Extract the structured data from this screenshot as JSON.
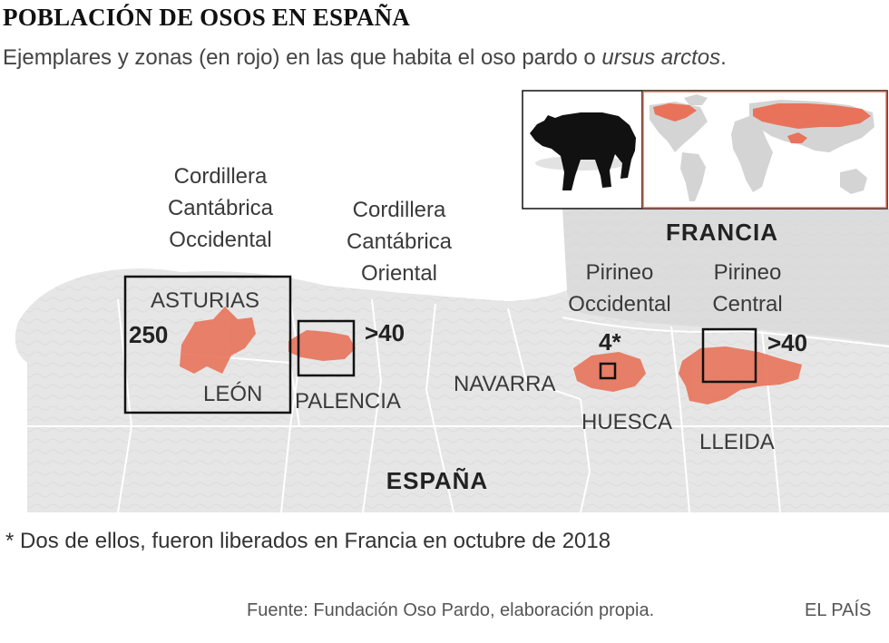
{
  "title": "POBLACIÓN DE OSOS EN ESPAÑA",
  "subtitle_prefix": "Ejemplares y zonas (en rojo) en las que habita el oso pardo o ",
  "subtitle_species": "ursus arctos",
  "subtitle_suffix": ".",
  "map": {
    "countries": {
      "france": "FRANCIA",
      "spain": "ESPAÑA"
    },
    "zones": [
      {
        "name_lines": [
          "Cordillera",
          "Cantábrica",
          "Occidental"
        ],
        "count": "250"
      },
      {
        "name_lines": [
          "Cordillera",
          "Cantábrica",
          "Oriental"
        ],
        "count": ">40"
      },
      {
        "name_lines": [
          "Pirineo",
          "Occidental"
        ],
        "count": "4*"
      },
      {
        "name_lines": [
          "Pirineo",
          "Central"
        ],
        "count": ">40"
      }
    ],
    "provinces": [
      "ASTURIAS",
      "LEÓN",
      "PALENCIA",
      "NAVARRA",
      "HUESCA",
      "LLEIDA"
    ],
    "habitat_color": "#e8735a",
    "land_color": "#e6e6e6"
  },
  "footnote": "* Dos de ellos, fueron liberados en Francia en octubre de 2018",
  "source": "Fuente: Fundación Oso Pardo, elaboración propia.",
  "credit": "EL PAÍS"
}
